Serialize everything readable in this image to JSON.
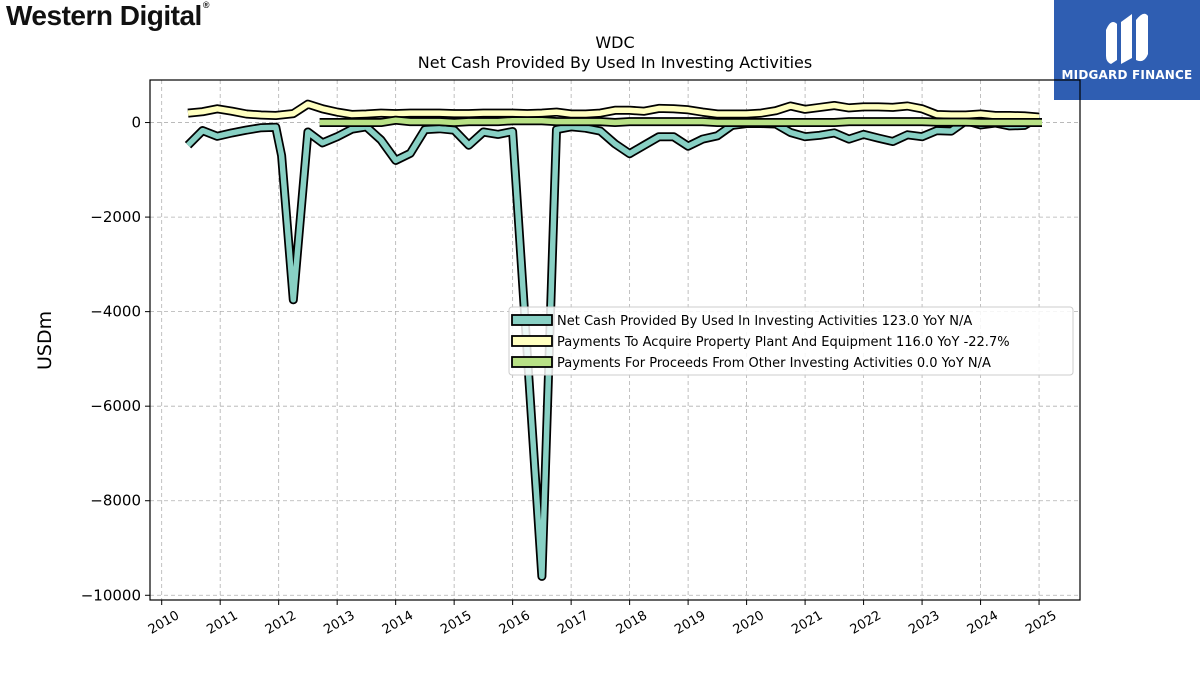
{
  "header": {
    "brand_logo": "Western Digital",
    "badge_text": "MIDGARD FINANCE"
  },
  "chart_data": {
    "type": "line",
    "title": "WDC",
    "subtitle": "Net Cash Provided By Used In Investing Activities",
    "xlabel": "",
    "ylabel": "USDm",
    "xlim": [
      2009.8,
      2025.7
    ],
    "ylim": [
      -10100,
      900
    ],
    "yticks": [
      0,
      -2000,
      -4000,
      -6000,
      -8000,
      -10000
    ],
    "ytick_labels": [
      "0",
      "−2000",
      "−4000",
      "−6000",
      "−8000",
      "−10000"
    ],
    "xticks": [
      2010,
      2011,
      2012,
      2013,
      2014,
      2015,
      2016,
      2017,
      2018,
      2019,
      2020,
      2021,
      2022,
      2023,
      2024,
      2025
    ],
    "xtick_labels": [
      "2010",
      "2011",
      "2012",
      "2013",
      "2014",
      "2015",
      "2016",
      "2017",
      "2018",
      "2019",
      "2020",
      "2021",
      "2022",
      "2023",
      "2024",
      "2025"
    ],
    "grid": true,
    "legend_position": "center-right",
    "series": [
      {
        "name": "Net Cash Provided By Used In Investing Activities",
        "legend_label": "Net Cash Provided By Used In Investing Activities  123.0 YoY N/A",
        "color": "#88d0c4",
        "x": [
          2010.45,
          2010.7,
          2010.95,
          2011.2,
          2011.45,
          2011.7,
          2011.95,
          2012.05,
          2012.25,
          2012.5,
          2012.75,
          2013.0,
          2013.25,
          2013.5,
          2013.75,
          2014.0,
          2014.25,
          2014.5,
          2014.75,
          2015.0,
          2015.25,
          2015.5,
          2015.75,
          2016.0,
          2016.25,
          2016.5,
          2016.75,
          2017.0,
          2017.25,
          2017.5,
          2017.75,
          2018.0,
          2018.25,
          2018.5,
          2018.75,
          2019.0,
          2019.25,
          2019.5,
          2019.75,
          2020.0,
          2020.25,
          2020.5,
          2020.75,
          2021.0,
          2021.25,
          2021.5,
          2021.75,
          2022.0,
          2022.25,
          2022.5,
          2022.75,
          2023.0,
          2023.25,
          2023.5,
          2023.75,
          2024.0,
          2024.25,
          2024.5,
          2024.75,
          2025.0
        ],
        "y": [
          -480,
          -170,
          -290,
          -220,
          -160,
          -110,
          -100,
          -700,
          -3750,
          -200,
          -430,
          -300,
          -140,
          -90,
          -370,
          -800,
          -650,
          -150,
          -130,
          -160,
          -480,
          -200,
          -250,
          -190,
          -4900,
          -9600,
          -150,
          -90,
          -120,
          -180,
          -450,
          -660,
          -480,
          -300,
          -300,
          -500,
          -350,
          -280,
          -60,
          -20,
          -20,
          -30,
          -210,
          -300,
          -270,
          -220,
          -350,
          -250,
          -330,
          -400,
          -260,
          -300,
          -170,
          -180,
          40,
          -50,
          -10,
          -70,
          -60,
          123
        ]
      },
      {
        "name": "Payments To Acquire Property Plant And Equipment",
        "legend_label": "Payments To Acquire Property Plant And Equipment  116.0 YoY -22.7%",
        "color": "#ffffc0",
        "x": [
          2010.45,
          2010.7,
          2010.95,
          2011.2,
          2011.45,
          2011.7,
          2011.95,
          2012.25,
          2012.5,
          2012.75,
          2013.0,
          2013.25,
          2013.5,
          2013.75,
          2014.0,
          2014.25,
          2014.5,
          2014.75,
          2015.0,
          2015.25,
          2015.5,
          2015.75,
          2016.0,
          2016.25,
          2016.5,
          2016.75,
          2017.0,
          2017.25,
          2017.5,
          2017.75,
          2018.0,
          2018.25,
          2018.5,
          2018.75,
          2019.0,
          2019.25,
          2019.5,
          2019.75,
          2020.0,
          2020.25,
          2020.5,
          2020.75,
          2021.0,
          2021.25,
          2021.5,
          2021.75,
          2022.0,
          2022.25,
          2022.5,
          2022.75,
          2023.0,
          2023.25,
          2023.5,
          2023.75,
          2024.0,
          2024.25,
          2024.5,
          2024.75,
          2025.0
        ],
        "y": [
          200,
          230,
          290,
          240,
          180,
          160,
          150,
          190,
          390,
          290,
          220,
          170,
          180,
          200,
          190,
          200,
          200,
          200,
          190,
          190,
          200,
          200,
          200,
          190,
          200,
          220,
          180,
          180,
          200,
          260,
          260,
          240,
          300,
          290,
          270,
          220,
          180,
          180,
          180,
          200,
          250,
          350,
          280,
          320,
          360,
          310,
          330,
          330,
          320,
          350,
          290,
          170,
          160,
          160,
          180,
          150,
          150,
          140,
          116
        ]
      },
      {
        "name": "Payments For Proceeds From Other Investing Activities",
        "legend_label": "Payments For Proceeds From Other Investing Activities  0.0 YoY N/A",
        "color": "#b8e186",
        "x": [
          2012.7,
          2013.0,
          2013.25,
          2013.5,
          2013.75,
          2014.0,
          2014.25,
          2014.5,
          2014.75,
          2015.0,
          2015.25,
          2015.5,
          2015.75,
          2016.0,
          2016.25,
          2016.5,
          2016.75,
          2017.0,
          2017.25,
          2017.5,
          2017.75,
          2018.0,
          2018.25,
          2018.5,
          2018.75,
          2019.0,
          2019.25,
          2019.5,
          2019.75,
          2020.0,
          2020.25,
          2020.5,
          2020.75,
          2021.0,
          2021.25,
          2021.5,
          2021.75,
          2022.0,
          2022.25,
          2022.5,
          2022.75,
          2023.0,
          2023.25,
          2023.5,
          2023.75,
          2024.0,
          2024.25,
          2024.5,
          2024.75,
          2025.05
        ],
        "y": [
          0,
          0,
          0,
          0,
          0,
          50,
          20,
          20,
          20,
          0,
          20,
          20,
          20,
          40,
          40,
          40,
          20,
          20,
          20,
          20,
          0,
          20,
          20,
          20,
          20,
          20,
          20,
          0,
          0,
          0,
          0,
          0,
          0,
          0,
          0,
          0,
          20,
          20,
          20,
          20,
          20,
          20,
          10,
          10,
          10,
          0,
          0,
          0,
          0,
          0
        ]
      }
    ]
  }
}
